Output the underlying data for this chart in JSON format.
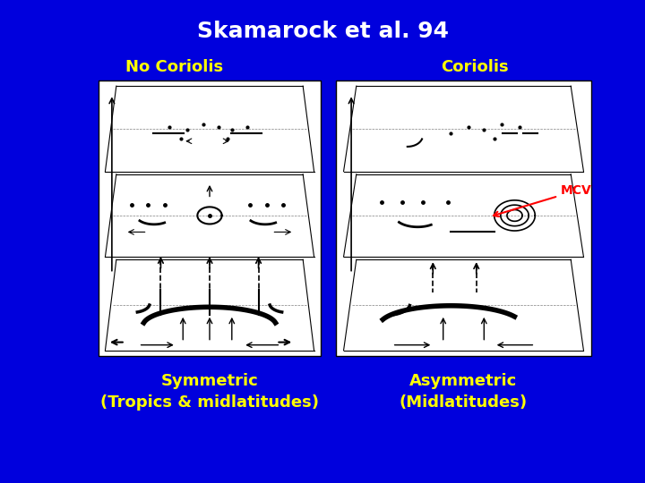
{
  "background_color": "#0000DD",
  "title": "Skamarock et al. 94",
  "title_color": "#FFFFFF",
  "title_fontsize": 18,
  "title_bold": true,
  "label_left": "No Coriolis",
  "label_right": "Coriolis",
  "label_color": "#FFFF00",
  "label_fontsize": 13,
  "label_bold": true,
  "caption_left_line1": "Symmetric",
  "caption_left_line2": "(Tropics & midlatitudes)",
  "caption_right_line1": "Asymmetric",
  "caption_right_line2": "(Midlatitudes)",
  "caption_color": "#FFFF00",
  "caption_fontsize": 13,
  "caption_bold": true,
  "mcv_text": "MCV",
  "mcv_color": "#FF0000",
  "mcv_fontsize": 10,
  "box_facecolor": "#FFFFFF",
  "box_edgecolor": "#000000"
}
